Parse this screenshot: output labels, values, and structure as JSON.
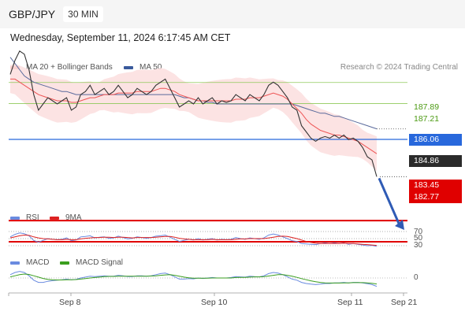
{
  "header": {
    "symbol": "GBP/JPY",
    "timeframe": "30 MIN"
  },
  "datetime": "Wednesday, September 11, 2024 6:17:45 AM CET",
  "legend": {
    "ma20_label": "MA 20 + Bollinger Bands",
    "ma50_label": "MA 50",
    "rsi_label": "RSI",
    "ma9_label": "9MA",
    "macd_label": "MACD",
    "macd_signal_label": "MACD Signal"
  },
  "credit": "Research © 2024 Trading Central",
  "colors": {
    "price": "#333333",
    "ma20": "#ee5555",
    "bb_fill": "#fcdede",
    "ma50": "#5a6a9c",
    "resistance": "#8fc95a",
    "pivot": "#2868dc",
    "support": "#e00000",
    "rsi": "#6a8be0",
    "rsi_ma": "#dd2222",
    "macd": "#6a8be0",
    "macd_signal": "#3a9e1e"
  },
  "levels": {
    "resistance_2": "187.89",
    "resistance_1": "187.21",
    "pivot": "186.06",
    "last_price": "184.86",
    "support_1": "183.45",
    "support_2": "182.77"
  },
  "rsi_levels": [
    "70",
    "50",
    "30"
  ],
  "macd_zero": "0",
  "x_axis": [
    "Sep 8",
    "Sep 10",
    "Sep 11",
    "Sep 21"
  ],
  "chart_data": {
    "type": "line",
    "title": "GBP/JPY",
    "y_range": [
      182.2,
      189.8
    ],
    "price": [
      188.15,
      188.6,
      188.9,
      188.8,
      188.3,
      187.5,
      187.0,
      187.2,
      187.4,
      187.3,
      187.2,
      187.3,
      187.4,
      187.0,
      187.1,
      187.5,
      187.6,
      187.8,
      187.5,
      187.6,
      187.7,
      187.5,
      187.6,
      187.8,
      187.6,
      187.4,
      187.5,
      187.7,
      187.6,
      187.5,
      187.6,
      187.8,
      187.9,
      188.0,
      187.7,
      187.4,
      187.1,
      187.2,
      187.3,
      187.2,
      187.4,
      187.2,
      187.3,
      187.4,
      187.2,
      187.3,
      187.25,
      187.3,
      187.5,
      187.4,
      187.3,
      187.5,
      187.4,
      187.3,
      187.5,
      187.8,
      187.9,
      187.8,
      187.6,
      187.4,
      187.1,
      187.0,
      186.5,
      186.3,
      186.1,
      186.0,
      186.1,
      186.15,
      186.1,
      186.2,
      186.1,
      186.2,
      186.05,
      186.1,
      186.0,
      185.8,
      185.5,
      185.4,
      184.86
    ],
    "ma20": [
      188.0,
      188.0,
      187.9,
      187.8,
      187.7,
      187.6,
      187.5,
      187.45,
      187.4,
      187.35,
      187.3,
      187.3,
      187.3,
      187.25,
      187.25,
      187.3,
      187.35,
      187.4,
      187.4,
      187.45,
      187.5,
      187.5,
      187.5,
      187.55,
      187.55,
      187.55,
      187.55,
      187.6,
      187.6,
      187.6,
      187.6,
      187.65,
      187.7,
      187.7,
      187.65,
      187.6,
      187.5,
      187.45,
      187.4,
      187.35,
      187.3,
      187.3,
      187.3,
      187.3,
      187.3,
      187.3,
      187.3,
      187.3,
      187.35,
      187.35,
      187.35,
      187.4,
      187.4,
      187.4,
      187.45,
      187.5,
      187.55,
      187.5,
      187.45,
      187.35,
      187.2,
      187.05,
      186.9,
      186.7,
      186.55,
      186.45,
      186.35,
      186.3,
      186.25,
      186.2,
      186.2,
      186.15,
      186.1,
      186.05,
      186.0,
      185.9,
      185.8,
      185.7,
      185.6
    ],
    "ma50": [
      188.7,
      188.5,
      188.3,
      188.1,
      188.0,
      187.9,
      187.85,
      187.8,
      187.75,
      187.7,
      187.65,
      187.6,
      187.6,
      187.55,
      187.5,
      187.5,
      187.5,
      187.5,
      187.5,
      187.5,
      187.5,
      187.5,
      187.5,
      187.5,
      187.5,
      187.5,
      187.5,
      187.5,
      187.5,
      187.5,
      187.5,
      187.5,
      187.5,
      187.5,
      187.5,
      187.5,
      187.45,
      187.4,
      187.4,
      187.35,
      187.3,
      187.3,
      187.25,
      187.25,
      187.2,
      187.2,
      187.2,
      187.2,
      187.2,
      187.2,
      187.2,
      187.2,
      187.2,
      187.2,
      187.2,
      187.2,
      187.2,
      187.2,
      187.2,
      187.2,
      187.2,
      187.15,
      187.1,
      187.05,
      187.0,
      186.95,
      186.9,
      186.9,
      186.85,
      186.8,
      186.8,
      186.75,
      186.7,
      186.65,
      186.6,
      186.55,
      186.5,
      186.45,
      186.4
    ],
    "forecast": [
      184.86,
      183.2
    ],
    "rsi": [
      55,
      62,
      66,
      64,
      58,
      45,
      40,
      45,
      50,
      48,
      47,
      48,
      52,
      44,
      46,
      55,
      56,
      58,
      52,
      54,
      55,
      51,
      52,
      57,
      53,
      49,
      51,
      55,
      53,
      51,
      53,
      57,
      58,
      60,
      54,
      48,
      42,
      45,
      48,
      46,
      50,
      46,
      48,
      50,
      46,
      48,
      47,
      48,
      53,
      50,
      48,
      52,
      50,
      48,
      52,
      60,
      63,
      60,
      55,
      50,
      44,
      42,
      36,
      35,
      34,
      33,
      36,
      38,
      36,
      38,
      36,
      38,
      34,
      36,
      34,
      32,
      30,
      31,
      28
    ],
    "rsi_ma": [
      52,
      55,
      58,
      60,
      59,
      55,
      52,
      50,
      49,
      48,
      47,
      47,
      48,
      47,
      47,
      49,
      51,
      52,
      53,
      53,
      54,
      54,
      53,
      54,
      54,
      53,
      52,
      53,
      53,
      53,
      53,
      54,
      55,
      56,
      56,
      54,
      51,
      49,
      48,
      47,
      47,
      47,
      47,
      48,
      47,
      47,
      47,
      47,
      48,
      49,
      49,
      50,
      50,
      50,
      50,
      52,
      54,
      56,
      57,
      56,
      53,
      50,
      46,
      42,
      39,
      37,
      36,
      36,
      36,
      36,
      36,
      37,
      36,
      36,
      35,
      34,
      33,
      32,
      31
    ],
    "macd": [
      0.15,
      0.25,
      0.3,
      0.25,
      0.1,
      -0.1,
      -0.2,
      -0.2,
      -0.15,
      -0.12,
      -0.1,
      -0.08,
      -0.05,
      -0.08,
      -0.06,
      0.0,
      0.04,
      0.08,
      0.06,
      0.08,
      0.1,
      0.08,
      0.08,
      0.12,
      0.1,
      0.06,
      0.06,
      0.1,
      0.1,
      0.08,
      0.1,
      0.15,
      0.2,
      0.22,
      0.15,
      0.05,
      -0.05,
      -0.05,
      -0.03,
      -0.04,
      0.0,
      -0.02,
      0.0,
      0.02,
      0.0,
      0.0,
      0.0,
      0.02,
      0.06,
      0.05,
      0.04,
      0.08,
      0.06,
      0.05,
      0.1,
      0.2,
      0.25,
      0.22,
      0.15,
      0.05,
      -0.05,
      -0.1,
      -0.2,
      -0.25,
      -0.28,
      -0.3,
      -0.28,
      -0.25,
      -0.25,
      -0.22,
      -0.22,
      -0.2,
      -0.22,
      -0.2,
      -0.2,
      -0.22,
      -0.26,
      -0.3,
      -0.38
    ],
    "macd_signal": [
      0.05,
      0.1,
      0.15,
      0.18,
      0.16,
      0.1,
      0.04,
      -0.02,
      -0.06,
      -0.08,
      -0.09,
      -0.09,
      -0.08,
      -0.08,
      -0.07,
      -0.05,
      -0.03,
      0.0,
      0.02,
      0.04,
      0.06,
      0.07,
      0.07,
      0.08,
      0.08,
      0.08,
      0.08,
      0.08,
      0.08,
      0.08,
      0.09,
      0.1,
      0.12,
      0.14,
      0.15,
      0.12,
      0.08,
      0.04,
      0.01,
      -0.01,
      -0.01,
      -0.01,
      -0.01,
      0.0,
      0.0,
      0.0,
      0.0,
      0.0,
      0.02,
      0.03,
      0.03,
      0.04,
      0.05,
      0.05,
      0.06,
      0.09,
      0.12,
      0.15,
      0.15,
      0.12,
      0.08,
      0.03,
      -0.03,
      -0.08,
      -0.13,
      -0.17,
      -0.2,
      -0.22,
      -0.23,
      -0.23,
      -0.23,
      -0.22,
      -0.22,
      -0.21,
      -0.21,
      -0.21,
      -0.22,
      -0.24,
      -0.27
    ]
  }
}
